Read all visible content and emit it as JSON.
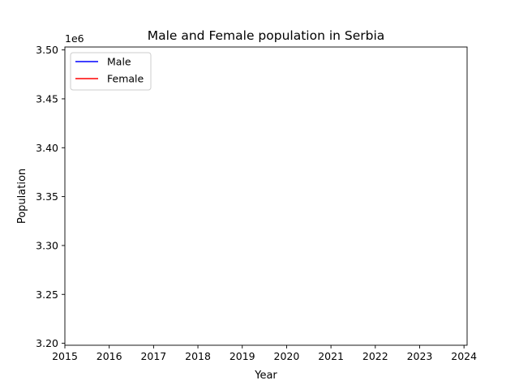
{
  "chart_data": {
    "type": "line",
    "title": "Male and Female population in Serbia",
    "xlabel": "Year",
    "ylabel": "Population",
    "y_offset_label": "1e6",
    "xlim": [
      2015,
      2024.07
    ],
    "ylim": [
      3.198,
      3.503
    ],
    "x_ticks": [
      2015,
      2016,
      2017,
      2018,
      2019,
      2020,
      2021,
      2022,
      2023,
      2024
    ],
    "x_tick_labels": [
      "2015",
      "2016",
      "2017",
      "2018",
      "2019",
      "2020",
      "2021",
      "2022",
      "2023",
      "2024"
    ],
    "y_ticks": [
      3.2,
      3.25,
      3.3,
      3.35,
      3.4,
      3.45,
      3.5
    ],
    "y_tick_labels": [
      "3.20",
      "3.25",
      "3.30",
      "3.35",
      "3.40",
      "3.45",
      "3.50"
    ],
    "grid": false,
    "legend_position": "upper-left",
    "series": [
      {
        "name": "Male",
        "color": "#0000ff",
        "x": [],
        "values": []
      },
      {
        "name": "Female",
        "color": "#ff0000",
        "x": [],
        "values": []
      }
    ]
  }
}
